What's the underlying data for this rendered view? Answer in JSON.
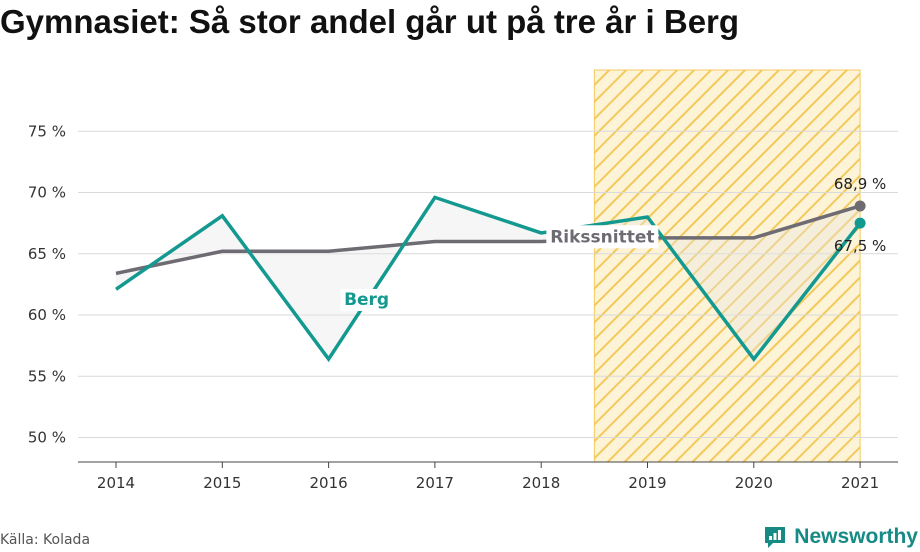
{
  "title": "Gymnasiet: Så stor andel går ut på tre år i Berg",
  "source": "Källa: Kolada",
  "brand": {
    "name": "Newsworthy",
    "icon": "newsworthy-logo-icon",
    "color": "#168a85"
  },
  "chart_data": {
    "type": "line",
    "categories": [
      "2014",
      "2015",
      "2016",
      "2017",
      "2018",
      "2019",
      "2020",
      "2021"
    ],
    "series": [
      {
        "name": "Berg",
        "color": "#13998f",
        "values": [
          62.1,
          68.1,
          56.4,
          69.6,
          66.7,
          68.0,
          56.4,
          67.5
        ],
        "end_label": "67,5 %"
      },
      {
        "name": "Rikssnittet",
        "color": "#6e6b73",
        "values": [
          63.4,
          65.2,
          65.2,
          66.0,
          66.0,
          66.3,
          66.3,
          68.9
        ],
        "end_label": "68,9 %"
      }
    ],
    "ylim": [
      48,
      80
    ],
    "yticks": [
      50,
      55,
      60,
      65,
      70,
      75
    ],
    "ytick_labels": [
      "50 %",
      "55 %",
      "60 %",
      "65 %",
      "70 %",
      "75 %"
    ],
    "highlight": {
      "from": "2019",
      "to": "2021",
      "fill": "#fbe7b0",
      "stroke": "#f3c95c"
    },
    "grid": true,
    "xlabel": "",
    "ylabel": ""
  }
}
